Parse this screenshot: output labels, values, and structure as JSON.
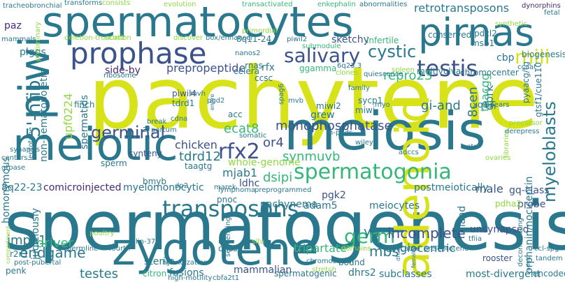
{
  "words": {
    "pachytene": "pachytene",
    "spermatogenesis": "spermatogenesis",
    "spermatocytes": "spermatocytes",
    "meiosis": "meiosis",
    "zygotene": "zygotene",
    "meiotic": "meiotic",
    "adenoid": "adenoid",
    "pirnas": "pirnas",
    "piwi": "piwi",
    "prophase": "prophase",
    "spermatogonia": "spermatogonia",
    "transposons": "transposons",
    "testis": "testis",
    "cystic": "cystic",
    "mili": "mili",
    "salivary": "salivary",
    "germ": "germ",
    "germinal": "germinal",
    "rfx2": "rfx2",
    "five_nfib": "5'-nfib",
    "myeloblasts": "myeloblasts",
    "retrotransposons": "retrotransposons",
    "repro23": "repro23",
    "incomplete": "incomplete",
    "endgame": "endgame",
    "impa1": "impa1",
    "mbs": "mbs",
    "tdrd12": "tdrd12",
    "ecat8": "ecat8",
    "or4": "or4",
    "monophosphatase": "monophosphatase",
    "preproppetide": "prepropeptide",
    "dsipi": "dsipi",
    "synmuvb": "synmuvb",
    "mjab1": "mjab1",
    "driver": "driver",
    "angiocentric": "angiocentric",
    "testes": "testes",
    "tripartate": "tripartate",
    "yg": "yg",
    "chicken": "chicken",
    "taagtg": "taagtg",
    "gprk": "gprk",
    "gi_and": "gi-and",
    "eightcen": "8cen",
    "taacgg": "taacgg",
    "upf0224": "upf0224",
    "spermatids": "spermatids",
    "sketchy": "sketchy",
    "cbp": "cbp",
    "biogenesis": "biogenesis",
    "gq_class": "gq-class",
    "male": "male",
    "adam5": "adam5",
    "pachynema": "pachynema",
    "postmeiotically": "postmeiotically",
    "meiocytes": "meiocytes",
    "comicroinjected": "comicroinjected",
    "myelomonocytic": "myelomonocytic",
    "eightq2223": "8q22-23",
    "homonymous": "homonymous",
    "judiciously": "judiciously",
    "r2r3": "r2r3",
    "sterile": "sterile",
    "fusions": "fusions",
    "citron": "citron",
    "mammalian": "mammalian",
    "spermatogenic": "spermatogenic",
    "dhrs2": "dhrs2",
    "subclasses": "subclasses",
    "most_divergent": "most-divergent",
    "encoded": "encoded",
    "rooster": "rooster",
    "unsynapsed": "unsynapsed",
    "gland": "gland",
    "orphanin": "orphanin/nociceptin",
    "probe": "probe",
    "pdha2": "pdha2",
    "pgk2": "pgk2",
    "ldhc": "ldhc",
    "whole_genome": "whole-genome",
    "sperm": "sperm",
    "synteny": "synteny",
    "grew": "grew",
    "acc": "acc",
    "miwi": "miwi",
    "sycp1": "sycp1",
    "ccsc": "ccsc",
    "celera": "celera",
    "rnas": "rnas",
    "rfx": "rfx",
    "ggamma": "ggamma",
    "tdrd1": "tdrd1",
    "piwil4": "piwil4",
    "side_by": "side-by",
    "plggs": "plggs",
    "finch": "finch",
    "non_hematopoietic": "non-hematopoietic",
    "paz": "paz",
    "tracheobronchial": "tracheobronchial",
    "transforms": "transforms",
    "consists": "consists",
    "evolution": "evolution",
    "transactivated": "transactivated",
    "enkephalin": "enkephalin",
    "abnormalities": "abnormalities",
    "dynorphins": "dynorphins",
    "synthetic": "synthetic",
    "conserved": "conserved",
    "pdcl2": "pdcl2",
    "msb1": "msb1",
    "infertile": "infertile",
    "submodule": "submodule",
    "eightq1124": "8q11-24",
    "scml2": "scml2",
    "deletion_truncation": "deletion-truncation",
    "box_enhancer": "box/enhancer",
    "piwil2": "piwil2",
    "nanos2": "nanos2",
    "miwi2": "miwi2",
    "multivulva": "multivulva",
    "chromocenter": "chromocenter",
    "pyaacg": "pyaacg/tg",
    "gtsf1": "gtsf1/cue110",
    "xq13": "xq13",
    "dp2": "dp2",
    "marek": "marek",
    "lymphoma": "lymphoma",
    "preprogrammed": "preprogrammed",
    "bmyb": "bmyb",
    "pnoc": "pnoc",
    "lin37": "lin-37",
    "germline": "germline",
    "fourth": "fourth",
    "poultry": "poultry",
    "penk": "penk",
    "post_pubertal": "post-pubertal",
    "hybridization": "hybridization",
    "high_motility": "high-motility",
    "cbfa2t1": "cbfa2t1",
    "dhss": "dhss",
    "sequencing": "sequencing",
    "situ": "situ",
    "bound": "bound",
    "chromosomal": "chromosomal",
    "stretch": "stretch",
    "domains": "domains",
    "duplicated": "duplicated",
    "preleptotene": "preleptotene",
    "tfiia": "tfiia",
    "ccl_spg": "ccl-spg",
    "tandem": "tandem",
    "adult": "adult",
    "decondensing": "decondensing",
    "gtpase": "gtpase",
    "centers": "centers",
    "synapsis": "synapsis",
    "leptotene": "leptotene",
    "mammals": "mammals",
    "preliminary": "preliminary",
    "compartment": "compartment",
    "ribosome": "ribosome",
    "spag6": "spag6",
    "somatic": "somatic",
    "h_pgds": "h-pgds",
    "wiley": "wiley",
    "adccs": "adccs",
    "sets": "sets",
    "libraries": "libraries",
    "ovaries": "ovaries",
    "derepress": "derepress",
    "precursor": "precursor",
    "appears": "appears",
    "ccaat": "ccaat",
    "spleen": "spleen",
    "quiescence": "quiescence",
    "clones": "clones",
    "family": "family",
    "myo": "myo",
    "six_q23": "6q23.3",
    "primordial": "primordial",
    "discover": "discover",
    "entire": "entire",
    "break": "break",
    "cdna": "cdna",
    "partum": "partum",
    "twor": "2r",
    "mvh": "mvh",
    "pgd2": "pgd2",
    "mvb": "mvb",
    "fetal": "fetal",
    "female": "female",
    "dhs": "dhs"
  },
  "colors": {
    "background": "#ffffff",
    "purple": "#3b528b",
    "blue": "#2a788e",
    "teal": "#21918c",
    "green": "#35b779",
    "lime": "#90d743",
    "yellow": "#d8e219"
  }
}
